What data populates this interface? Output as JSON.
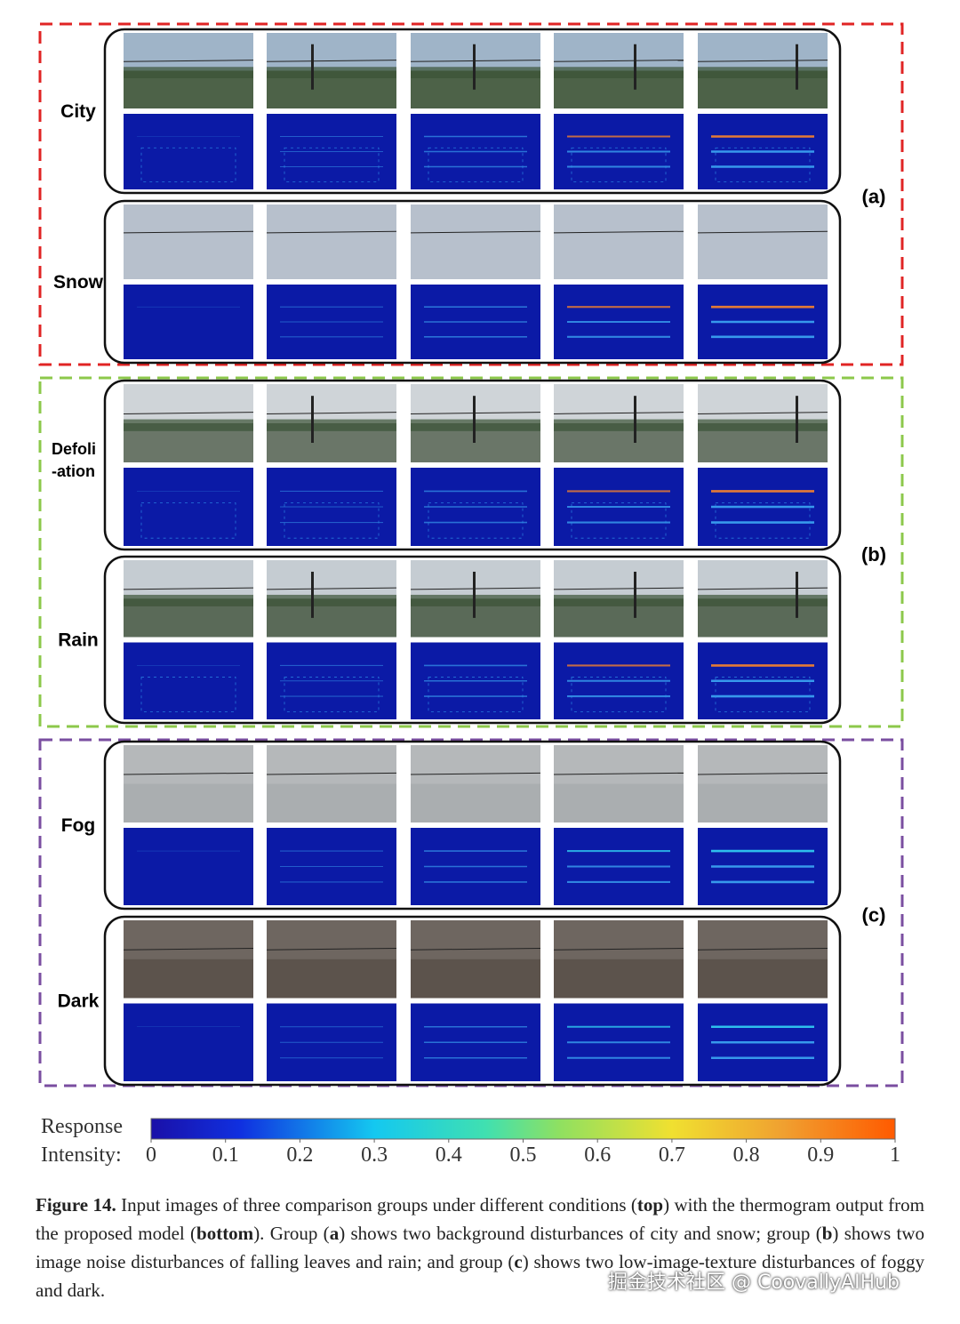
{
  "groups": [
    {
      "label": "(a)",
      "color": "#e02424",
      "rows": [
        {
          "label": "City"
        },
        {
          "label": "Snow"
        }
      ]
    },
    {
      "label": "(b)",
      "color": "#8cc84b",
      "rows": [
        {
          "label": "Defoli\n-ation"
        },
        {
          "label": "Rain"
        }
      ]
    },
    {
      "label": "(c)",
      "color": "#7a4ea0",
      "rows": [
        {
          "label": "Fog"
        },
        {
          "label": "Dark"
        }
      ]
    }
  ],
  "colorbar": {
    "title": "Response",
    "label": "Intensity:",
    "ticks": [
      0,
      0.1,
      0.2,
      0.3,
      0.4,
      0.5,
      0.6,
      0.7,
      0.8,
      0.9,
      1
    ]
  },
  "caption": [
    {
      "text": "Figure 14.",
      "bold": true
    },
    {
      "text": " Input images of three comparison groups under different conditions ("
    },
    {
      "text": "top",
      "bold": true
    },
    {
      "text": ") with the thermogram output from the proposed model ("
    },
    {
      "text": "bottom",
      "bold": true
    },
    {
      "text": "). Group ("
    },
    {
      "text": "a",
      "bold": true
    },
    {
      "text": ") shows two background disturbances of city and snow; group ("
    },
    {
      "text": "b",
      "bold": true
    },
    {
      "text": ") shows two image noise disturbances of falling leaves and rain; and group ("
    },
    {
      "text": "c",
      "bold": true
    },
    {
      "text": ") shows two low-image-texture disturbances of foggy and dark."
    }
  ],
  "watermark": "掘金技术社区 @ CoovallyAIHub"
}
